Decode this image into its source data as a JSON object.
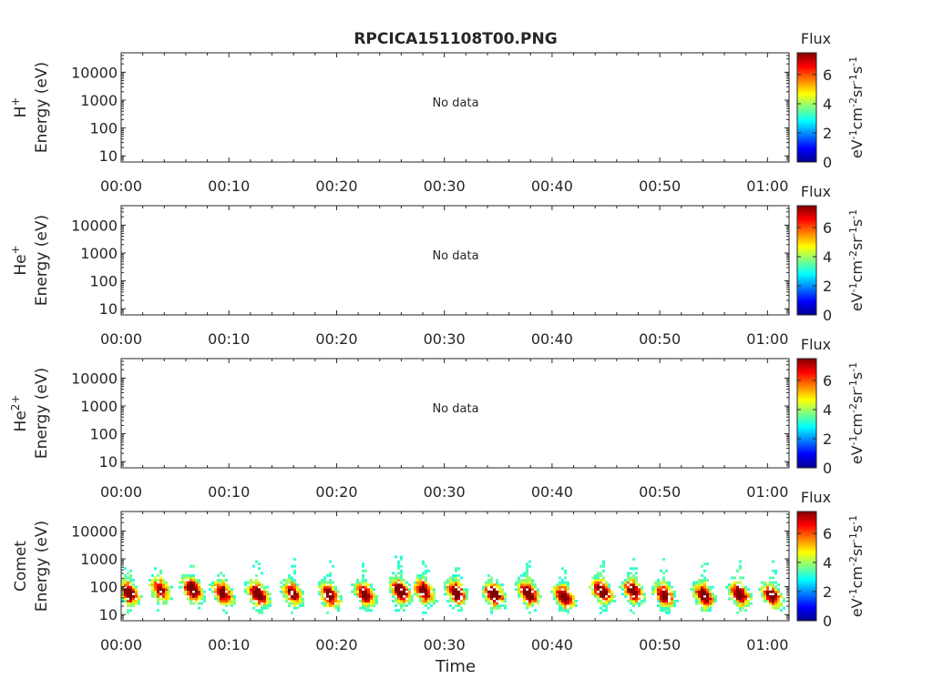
{
  "figure_title": "RPCICA151108T00.PNG",
  "colormap": [
    "#00008f",
    "#0000ff",
    "#00ffff",
    "#80ff80",
    "#ffff00",
    "#ff8000",
    "#ff0000",
    "#800000"
  ],
  "chart_data": [
    {
      "type": "heatmap",
      "panel": "H+",
      "ylabel_species": "H",
      "ylabel_superscript": "+",
      "ylabel": "Energy (eV)",
      "y_scale": "log",
      "ylim": [
        6,
        50000
      ],
      "y_ticks": [
        "10",
        "100",
        "1000",
        "10000"
      ],
      "y_tick_values": [
        10,
        100,
        1000,
        10000
      ],
      "x_ticks": [
        "00:00",
        "00:10",
        "00:20",
        "00:30",
        "00:40",
        "00:50",
        "01:00"
      ],
      "x_tick_values": [
        0,
        10,
        20,
        30,
        40,
        50,
        60
      ],
      "xlim_minutes": [
        0,
        62
      ],
      "annotation": "No data",
      "colorbar": {
        "title": "Flux",
        "label": "eV-1cm-2sr-1s-1",
        "range": [
          0,
          7.5
        ],
        "ticks": [
          "0",
          "2",
          "4",
          "6"
        ],
        "tick_values": [
          0,
          2,
          4,
          6
        ]
      }
    },
    {
      "type": "heatmap",
      "panel": "He+",
      "ylabel_species": "He",
      "ylabel_superscript": "+",
      "ylabel": "Energy (eV)",
      "y_scale": "log",
      "ylim": [
        6,
        50000
      ],
      "y_ticks": [
        "10",
        "100",
        "1000",
        "10000"
      ],
      "y_tick_values": [
        10,
        100,
        1000,
        10000
      ],
      "x_ticks": [
        "00:00",
        "00:10",
        "00:20",
        "00:30",
        "00:40",
        "00:50",
        "01:00"
      ],
      "x_tick_values": [
        0,
        10,
        20,
        30,
        40,
        50,
        60
      ],
      "xlim_minutes": [
        0,
        62
      ],
      "annotation": "No data",
      "colorbar": {
        "title": "Flux",
        "label": "eV-1cm-2sr-1s-1",
        "range": [
          0,
          7.5
        ],
        "ticks": [
          "0",
          "2",
          "4",
          "6"
        ],
        "tick_values": [
          0,
          2,
          4,
          6
        ]
      }
    },
    {
      "type": "heatmap",
      "panel": "He2+",
      "ylabel_species": "He",
      "ylabel_superscript": "2+",
      "ylabel": "Energy (eV)",
      "y_scale": "log",
      "ylim": [
        6,
        50000
      ],
      "y_ticks": [
        "10",
        "100",
        "1000",
        "10000"
      ],
      "y_tick_values": [
        10,
        100,
        1000,
        10000
      ],
      "x_ticks": [
        "00:00",
        "00:10",
        "00:20",
        "00:30",
        "00:40",
        "00:50",
        "01:00"
      ],
      "x_tick_values": [
        0,
        10,
        20,
        30,
        40,
        50,
        60
      ],
      "xlim_minutes": [
        0,
        62
      ],
      "annotation": "No data",
      "colorbar": {
        "title": "Flux",
        "label": "eV-1cm-2sr-1s-1",
        "range": [
          0,
          7.5
        ],
        "ticks": [
          "0",
          "2",
          "4",
          "6"
        ],
        "tick_values": [
          0,
          2,
          4,
          6
        ]
      }
    },
    {
      "type": "heatmap",
      "panel": "Comet",
      "ylabel_species": "Comet",
      "ylabel_superscript": "",
      "ylabel": "Energy (eV)",
      "y_scale": "log",
      "ylim": [
        6,
        50000
      ],
      "y_ticks": [
        "10",
        "100",
        "1000",
        "10000"
      ],
      "y_tick_values": [
        10,
        100,
        1000,
        10000
      ],
      "x_ticks": [
        "00:00",
        "00:10",
        "00:20",
        "00:30",
        "00:40",
        "00:50",
        "01:00"
      ],
      "x_tick_values": [
        0,
        10,
        20,
        30,
        40,
        50,
        60
      ],
      "xlim_minutes": [
        0,
        62
      ],
      "xlabel": "Time",
      "annotation": "",
      "colorbar": {
        "title": "Flux",
        "label": "eV-1cm-2sr-1s-1",
        "range": [
          0,
          7.5
        ],
        "ticks": [
          "0",
          "2",
          "4",
          "6"
        ],
        "tick_values": [
          0,
          2,
          4,
          6
        ]
      },
      "bursts": [
        {
          "t": 0.6,
          "e_peak": 60,
          "flux_peak": 6.5,
          "e_top": 700
        },
        {
          "t": 3.5,
          "e_peak": 80,
          "flux_peak": 5.5,
          "e_top": 400
        },
        {
          "t": 6.5,
          "e_peak": 80,
          "flux_peak": 7.0,
          "e_top": 700
        },
        {
          "t": 9.3,
          "e_peak": 60,
          "flux_peak": 6.5,
          "e_top": 600
        },
        {
          "t": 12.6,
          "e_peak": 55,
          "flux_peak": 7.0,
          "e_top": 700
        },
        {
          "t": 15.8,
          "e_peak": 60,
          "flux_peak": 6.0,
          "e_top": 800
        },
        {
          "t": 19.2,
          "e_peak": 50,
          "flux_peak": 6.5,
          "e_top": 700
        },
        {
          "t": 22.5,
          "e_peak": 55,
          "flux_peak": 6.0,
          "e_top": 500
        },
        {
          "t": 25.8,
          "e_peak": 70,
          "flux_peak": 7.0,
          "e_top": 1000
        },
        {
          "t": 28.0,
          "e_peak": 70,
          "flux_peak": 6.5,
          "e_top": 900
        },
        {
          "t": 31.0,
          "e_peak": 60,
          "flux_peak": 6.5,
          "e_top": 700
        },
        {
          "t": 34.5,
          "e_peak": 55,
          "flux_peak": 7.0,
          "e_top": 500
        },
        {
          "t": 37.7,
          "e_peak": 60,
          "flux_peak": 7.0,
          "e_top": 800
        },
        {
          "t": 41.0,
          "e_peak": 45,
          "flux_peak": 6.5,
          "e_top": 500
        },
        {
          "t": 44.5,
          "e_peak": 70,
          "flux_peak": 7.0,
          "e_top": 900
        },
        {
          "t": 47.4,
          "e_peak": 70,
          "flux_peak": 6.5,
          "e_top": 800
        },
        {
          "t": 50.3,
          "e_peak": 50,
          "flux_peak": 6.5,
          "e_top": 800
        },
        {
          "t": 54.0,
          "e_peak": 50,
          "flux_peak": 6.5,
          "e_top": 600
        },
        {
          "t": 57.3,
          "e_peak": 55,
          "flux_peak": 6.5,
          "e_top": 700
        },
        {
          "t": 60.3,
          "e_peak": 50,
          "flux_peak": 6.5,
          "e_top": 600
        }
      ]
    }
  ]
}
